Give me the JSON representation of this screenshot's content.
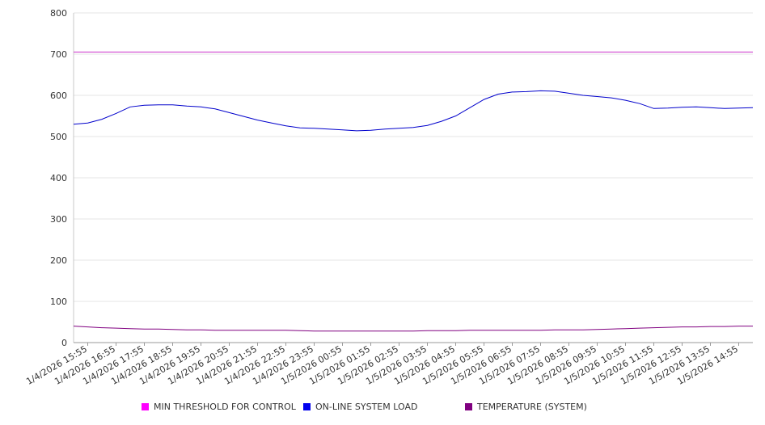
{
  "chart_data": {
    "type": "line",
    "title": "",
    "xlabel": "",
    "ylabel": "",
    "ylim": [
      0,
      800
    ],
    "yticks": [
      0,
      100,
      200,
      300,
      400,
      500,
      600,
      700,
      800
    ],
    "grid": true,
    "legend_position": "bottom",
    "x_tick_labels": [
      "1/4/2026 15:55",
      "1/4/2026 16:55",
      "1/4/2026 17:55",
      "1/4/2026 18:55",
      "1/4/2026 19:55",
      "1/4/2026 20:55",
      "1/4/2026 21:55",
      "1/4/2026 22:55",
      "1/4/2026 23:55",
      "1/5/2026 00:55",
      "1/5/2026 01:55",
      "1/5/2026 02:55",
      "1/5/2026 03:55",
      "1/5/2026 04:55",
      "1/5/2026 05:55",
      "1/5/2026 06:55",
      "1/5/2026 07:55",
      "1/5/2026 08:55",
      "1/5/2026 09:55",
      "1/5/2026 10:55",
      "1/5/2026 11:55",
      "1/5/2026 12:55",
      "1/5/2026 13:55",
      "1/5/2026 14:55"
    ],
    "x": [
      "1/4/2026 15:25",
      "1/4/2026 15:55",
      "1/4/2026 16:25",
      "1/4/2026 16:55",
      "1/4/2026 17:25",
      "1/4/2026 17:55",
      "1/4/2026 18:25",
      "1/4/2026 18:55",
      "1/4/2026 19:25",
      "1/4/2026 19:55",
      "1/4/2026 20:25",
      "1/4/2026 20:55",
      "1/4/2026 21:25",
      "1/4/2026 21:55",
      "1/4/2026 22:25",
      "1/4/2026 22:55",
      "1/4/2026 23:25",
      "1/4/2026 23:55",
      "1/5/2026 00:25",
      "1/5/2026 00:55",
      "1/5/2026 01:25",
      "1/5/2026 01:55",
      "1/5/2026 02:25",
      "1/5/2026 02:55",
      "1/5/2026 03:25",
      "1/5/2026 03:55",
      "1/5/2026 04:25",
      "1/5/2026 04:55",
      "1/5/2026 05:25",
      "1/5/2026 05:55",
      "1/5/2026 06:25",
      "1/5/2026 06:55",
      "1/5/2026 07:25",
      "1/5/2026 07:55",
      "1/5/2026 08:25",
      "1/5/2026 08:55",
      "1/5/2026 09:25",
      "1/5/2026 09:55",
      "1/5/2026 10:25",
      "1/5/2026 10:55",
      "1/5/2026 11:25",
      "1/5/2026 11:55",
      "1/5/2026 12:25",
      "1/5/2026 12:55",
      "1/5/2026 13:25",
      "1/5/2026 13:55",
      "1/5/2026 14:25",
      "1/5/2026 14:55",
      "1/5/2026 15:25"
    ],
    "series": [
      {
        "name": "MIN THRESHOLD FOR CONTROL",
        "color": "#cc33cc",
        "values": [
          705,
          705,
          705,
          705,
          705,
          705,
          705,
          705,
          705,
          705,
          705,
          705,
          705,
          705,
          705,
          705,
          705,
          705,
          705,
          705,
          705,
          705,
          705,
          705,
          705,
          705,
          705,
          705,
          705,
          705,
          705,
          705,
          705,
          705,
          705,
          705,
          705,
          705,
          705,
          705,
          705,
          705,
          705,
          705,
          705,
          705,
          705,
          705,
          705
        ]
      },
      {
        "name": "ON-LINE SYSTEM LOAD",
        "color": "#0000cc",
        "values": [
          530,
          533,
          542,
          556,
          572,
          576,
          577,
          577,
          574,
          572,
          567,
          558,
          549,
          540,
          533,
          526,
          521,
          520,
          518,
          516,
          514,
          515,
          518,
          520,
          522,
          527,
          537,
          550,
          570,
          590,
          603,
          608,
          609,
          611,
          610,
          605,
          600,
          597,
          594,
          588,
          580,
          568,
          569,
          571,
          572,
          570,
          568,
          569,
          570
        ]
      },
      {
        "name": "TEMPERATURE (SYSTEM)",
        "color": "#800080",
        "values": [
          40,
          38,
          36,
          35,
          34,
          33,
          33,
          32,
          31,
          31,
          30,
          30,
          30,
          30,
          30,
          30,
          29,
          28,
          28,
          28,
          28,
          28,
          28,
          28,
          28,
          29,
          29,
          29,
          30,
          30,
          30,
          30,
          30,
          30,
          31,
          31,
          31,
          32,
          33,
          34,
          35,
          36,
          37,
          38,
          38,
          39,
          39,
          40,
          40
        ]
      }
    ]
  }
}
